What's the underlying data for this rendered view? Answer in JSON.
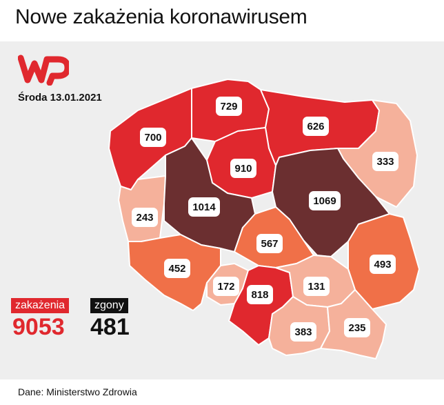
{
  "title": "Nowe zakażenia koronawirusem",
  "date": "Środa 13.01.2021",
  "source": "Dane: Ministerstwo Zdrowia",
  "logo": {
    "name": "wp-logo",
    "color": "#e0282e"
  },
  "legend": {
    "infections_label": "zakażenia",
    "infections_value": "9053",
    "deaths_label": "zgony",
    "deaths_value": "481"
  },
  "colors": {
    "dark": "#6b2f30",
    "red": "#e0282e",
    "orange": "#f07048",
    "light": "#f5b19b",
    "border": "#ffffff"
  },
  "regions": [
    {
      "id": "zachodniopomorskie",
      "value": "700"
    },
    {
      "id": "pomorskie",
      "value": "729"
    },
    {
      "id": "warminsko-mazurskie",
      "value": "626"
    },
    {
      "id": "podlaskie",
      "value": "333"
    },
    {
      "id": "kujawsko-pomorskie",
      "value": "910"
    },
    {
      "id": "lubuskie",
      "value": "243"
    },
    {
      "id": "wielkopolskie",
      "value": "1014"
    },
    {
      "id": "mazowieckie",
      "value": "1069"
    },
    {
      "id": "lodzkie",
      "value": "567"
    },
    {
      "id": "lubelskie",
      "value": "493"
    },
    {
      "id": "dolnoslaskie",
      "value": "452"
    },
    {
      "id": "opolskie",
      "value": "172"
    },
    {
      "id": "slaskie",
      "value": "818"
    },
    {
      "id": "swietokrzyskie",
      "value": "131"
    },
    {
      "id": "malopolskie",
      "value": "383"
    },
    {
      "id": "podkarpackie",
      "value": "235"
    }
  ]
}
